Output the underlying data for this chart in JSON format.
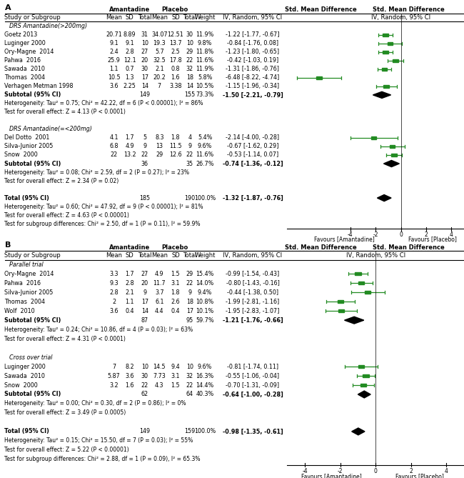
{
  "panel_A": {
    "title": "A",
    "group1_label": "DRS Amantadine(>200mg)",
    "group1_studies": [
      {
        "study": "Goetz 2013",
        "am_mean": "20.71",
        "am_sd": "8.89",
        "am_n": 31,
        "pl_mean": "34.07",
        "pl_sd": "12.51",
        "pl_n": 30,
        "weight": "11.9%",
        "smd": -1.22,
        "ci_lo": -1.77,
        "ci_hi": -0.67
      },
      {
        "study": "Luginger 2000",
        "am_mean": "9.1",
        "am_sd": "9.1",
        "am_n": 10,
        "pl_mean": "19.3",
        "pl_sd": "13.7",
        "pl_n": 10,
        "weight": "9.8%",
        "smd": -0.84,
        "ci_lo": -1.76,
        "ci_hi": 0.08
      },
      {
        "study": "Ory-Magne  2014",
        "am_mean": "2.4",
        "am_sd": "2.8",
        "am_n": 27,
        "pl_mean": "5.7",
        "pl_sd": "2.5",
        "pl_n": 29,
        "weight": "11.8%",
        "smd": -1.23,
        "ci_lo": -1.8,
        "ci_hi": -0.65
      },
      {
        "study": "Pahwa  2016",
        "am_mean": "25.9",
        "am_sd": "12.1",
        "am_n": 20,
        "pl_mean": "32.5",
        "pl_sd": "17.8",
        "pl_n": 22,
        "weight": "11.6%",
        "smd": -0.42,
        "ci_lo": -1.03,
        "ci_hi": 0.19
      },
      {
        "study": "Sawada  2010",
        "am_mean": "1.1",
        "am_sd": "0.7",
        "am_n": 30,
        "pl_mean": "2.1",
        "pl_sd": "0.8",
        "pl_n": 32,
        "weight": "11.9%",
        "smd": -1.31,
        "ci_lo": -1.86,
        "ci_hi": -0.76
      },
      {
        "study": "Thomas  2004",
        "am_mean": "10.5",
        "am_sd": "1.3",
        "am_n": 17,
        "pl_mean": "20.2",
        "pl_sd": "1.6",
        "pl_n": 18,
        "weight": "5.8%",
        "smd": -6.48,
        "ci_lo": -8.22,
        "ci_hi": -4.74
      },
      {
        "study": "Verhagen Metman 1998",
        "am_mean": "3.6",
        "am_sd": "2.25",
        "am_n": 14,
        "pl_mean": "7",
        "pl_sd": "3.38",
        "pl_n": 14,
        "weight": "10.5%",
        "smd": -1.15,
        "ci_lo": -1.96,
        "ci_hi": -0.34
      }
    ],
    "group1_subtotal": {
      "am_n": 149,
      "pl_n": 155,
      "weight": "73.3%",
      "smd": -1.5,
      "ci_lo": -2.21,
      "ci_hi": -0.79
    },
    "group1_het": "Heterogeneity: Tau² = 0.75; Chi² = 42.22, df = 6 (P < 0.00001); I² = 86%",
    "group1_effect": "Test for overall effect: Z = 4.13 (P < 0.0001)",
    "group2_label": "DRS Amantadine(=<200mg)",
    "group2_studies": [
      {
        "study": "Del Dotto  2001",
        "am_mean": "4.1",
        "am_sd": "1.7",
        "am_n": 5,
        "pl_mean": "8.3",
        "pl_sd": "1.8",
        "pl_n": 4,
        "weight": "5.4%",
        "smd": -2.14,
        "ci_lo": -4.0,
        "ci_hi": -0.28
      },
      {
        "study": "Silva-Junior 2005",
        "am_mean": "6.8",
        "am_sd": "4.9",
        "am_n": 9,
        "pl_mean": "13",
        "pl_sd": "11.5",
        "pl_n": 9,
        "weight": "9.6%",
        "smd": -0.67,
        "ci_lo": -1.62,
        "ci_hi": 0.29
      },
      {
        "study": "Snow  2000",
        "am_mean": "22",
        "am_sd": "13.2",
        "am_n": 22,
        "pl_mean": "29",
        "pl_sd": "12.6",
        "pl_n": 22,
        "weight": "11.6%",
        "smd": -0.53,
        "ci_lo": -1.14,
        "ci_hi": 0.07
      }
    ],
    "group2_subtotal": {
      "am_n": 36,
      "pl_n": 35,
      "weight": "26.7%",
      "smd": -0.74,
      "ci_lo": -1.36,
      "ci_hi": -0.12
    },
    "group2_het": "Heterogeneity: Tau² = 0.08; Chi² = 2.59, df = 2 (P = 0.27); I² = 23%",
    "group2_effect": "Test for overall effect: Z = 2.34 (P = 0.02)",
    "total": {
      "am_n": 185,
      "pl_n": 190,
      "weight": "100.0%",
      "smd": -1.32,
      "ci_lo": -1.87,
      "ci_hi": -0.76
    },
    "total_het": "Heterogeneity: Tau² = 0.60; Chi² = 47.92, df = 9 (P < 0.00001); I² = 81%",
    "total_effect": "Test for overall effect: Z = 4.63 (P < 0.00001)",
    "total_subgroup": "Test for subgroup differences: Chi² = 2.50, df = 1 (P = 0.11), I² = 59.9%",
    "xlim": [
      -9,
      5
    ],
    "xticks": [
      -4,
      -2,
      0,
      2,
      4
    ],
    "xlabel_left": "Favours [Amantadine]",
    "xlabel_right": "Favours [Placebo]"
  },
  "panel_B": {
    "title": "B",
    "group1_label": "Parallel trial",
    "group1_studies": [
      {
        "study": "Ory-Magne  2014",
        "am_mean": "3.3",
        "am_sd": "1.7",
        "am_n": 27,
        "pl_mean": "4.9",
        "pl_sd": "1.5",
        "pl_n": 29,
        "weight": "15.4%",
        "smd": -0.99,
        "ci_lo": -1.54,
        "ci_hi": -0.43
      },
      {
        "study": "Pahwa  2016",
        "am_mean": "9.3",
        "am_sd": "2.8",
        "am_n": 20,
        "pl_mean": "11.7",
        "pl_sd": "3.1",
        "pl_n": 22,
        "weight": "14.0%",
        "smd": -0.8,
        "ci_lo": -1.43,
        "ci_hi": -0.16
      },
      {
        "study": "Silva-Junior 2005",
        "am_mean": "2.8",
        "am_sd": "2.1",
        "am_n": 9,
        "pl_mean": "3.7",
        "pl_sd": "1.8",
        "pl_n": 9,
        "weight": "9.4%",
        "smd": -0.44,
        "ci_lo": -1.38,
        "ci_hi": 0.5
      },
      {
        "study": "Thomas  2004",
        "am_mean": "2",
        "am_sd": "1.1",
        "am_n": 17,
        "pl_mean": "6.1",
        "pl_sd": "2.6",
        "pl_n": 18,
        "weight": "10.8%",
        "smd": -1.99,
        "ci_lo": -2.81,
        "ci_hi": -1.16
      },
      {
        "study": "Wolf  2010",
        "am_mean": "3.6",
        "am_sd": "0.4",
        "am_n": 14,
        "pl_mean": "4.4",
        "pl_sd": "0.4",
        "pl_n": 17,
        "weight": "10.1%",
        "smd": -1.95,
        "ci_lo": -2.83,
        "ci_hi": -1.07
      }
    ],
    "group1_subtotal": {
      "am_n": 87,
      "pl_n": 95,
      "weight": "59.7%",
      "smd": -1.21,
      "ci_lo": -1.76,
      "ci_hi": -0.66
    },
    "group1_het": "Heterogeneity: Tau² = 0.24; Chi² = 10.86, df = 4 (P = 0.03); I² = 63%",
    "group1_effect": "Test for overall effect: Z = 4.31 (P < 0.0001)",
    "group2_label": "Cross over trial",
    "group2_studies": [
      {
        "study": "Luginger 2000",
        "am_mean": "7",
        "am_sd": "8.2",
        "am_n": 10,
        "pl_mean": "14.5",
        "pl_sd": "9.4",
        "pl_n": 10,
        "weight": "9.6%",
        "smd": -0.81,
        "ci_lo": -1.74,
        "ci_hi": 0.11
      },
      {
        "study": "Sawada  2010",
        "am_mean": "5.87",
        "am_sd": "3.6",
        "am_n": 30,
        "pl_mean": "7.73",
        "pl_sd": "3.1",
        "pl_n": 32,
        "weight": "16.3%",
        "smd": -0.55,
        "ci_lo": -1.06,
        "ci_hi": -0.04
      },
      {
        "study": "Snow  2000",
        "am_mean": "3.2",
        "am_sd": "1.6",
        "am_n": 22,
        "pl_mean": "4.3",
        "pl_sd": "1.5",
        "pl_n": 22,
        "weight": "14.4%",
        "smd": -0.7,
        "ci_lo": -1.31,
        "ci_hi": -0.09
      }
    ],
    "group2_subtotal": {
      "am_n": 62,
      "pl_n": 64,
      "weight": "40.3%",
      "smd": -0.64,
      "ci_lo": -1.0,
      "ci_hi": -0.28
    },
    "group2_het": "Heterogeneity: Tau² = 0.00; Chi² = 0.30, df = 2 (P = 0.86); I² = 0%",
    "group2_effect": "Test for overall effect: Z = 3.49 (P = 0.0005)",
    "total": {
      "am_n": 149,
      "pl_n": 159,
      "weight": "100.0%",
      "smd": -0.98,
      "ci_lo": -1.35,
      "ci_hi": -0.61
    },
    "total_het": "Heterogeneity: Tau² = 0.15; Chi² = 15.50, df = 7 (P = 0.03); I² = 55%",
    "total_effect": "Test for overall effect: Z = 5.22 (P < 0.00001)",
    "total_subgroup": "Test for subgroup differences: Chi² = 2.88, df = 1 (P = 0.09), I² = 65.3%",
    "xlim": [
      -5,
      5
    ],
    "xticks": [
      -4,
      -2,
      0,
      2,
      4
    ],
    "xlabel_left": "Favours [Amantadine]",
    "xlabel_right": "Favours [Placebo]"
  },
  "colors": {
    "study_line": "#228B22",
    "diamond": "#000000",
    "text": "#000000"
  },
  "fontsize_header": 6.0,
  "fontsize_study": 5.8,
  "fontsize_title": 8.0,
  "fontsize_small": 5.5
}
